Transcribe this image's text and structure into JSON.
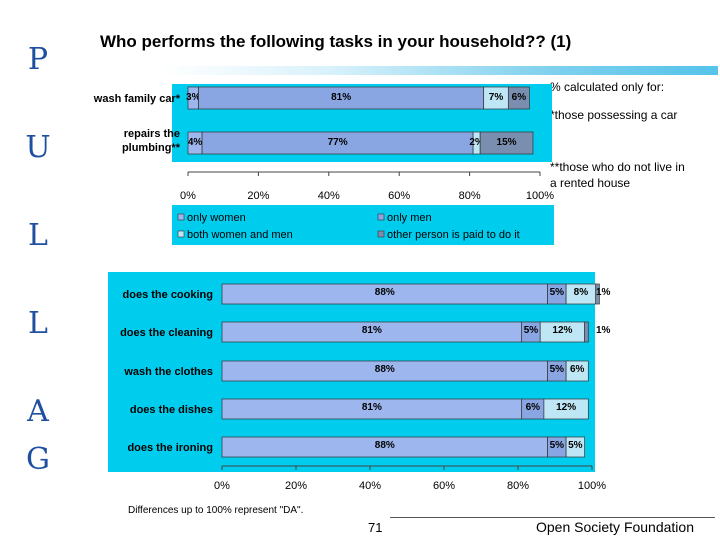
{
  "title": "Who performs the following tasks in your household?? (1)",
  "side_logo": "G A L L U P",
  "notes": {
    "line1": "% calculated only for:",
    "line2": "*those possessing a car",
    "line3a": "**those who do not live in",
    "line3b": "a rented house"
  },
  "footnote": "Differences up to 100% represent \"DA\".",
  "page_number": "71",
  "organization": "Open Society Foundation",
  "colors": {
    "only_women": "#9db6ee",
    "only_men": "#8aa6e2",
    "both": "#bfe6f4",
    "other": "#7a8fb0",
    "panel_bg": "#00ccee"
  },
  "legend": {
    "items": [
      {
        "label": "only women",
        "color": "#9db6ee"
      },
      {
        "label": "only men",
        "color": "#8aa6e2"
      },
      {
        "label": "both women and men",
        "color": "#bfe6f4"
      },
      {
        "label": "other person is paid to do it",
        "color": "#7a8fb0"
      }
    ]
  },
  "chart_data": [
    {
      "type": "bar",
      "orientation": "horizontal",
      "stacked": true,
      "categories": [
        "wash family car*",
        "repairs the plumbing**"
      ],
      "series": [
        {
          "name": "only women",
          "values": [
            3,
            4
          ]
        },
        {
          "name": "only men",
          "values": [
            81,
            77
          ]
        },
        {
          "name": "both women and men",
          "values": [
            7,
            2
          ]
        },
        {
          "name": "other person is paid to do it",
          "values": [
            6,
            15
          ]
        }
      ],
      "data_labels": [
        [
          "3%",
          "81%",
          "7%",
          "6%"
        ],
        [
          "4%",
          "77%",
          "2%",
          "15%"
        ]
      ],
      "xlim": [
        0,
        100
      ],
      "xticks": [
        "0%",
        "20%",
        "40%",
        "60%",
        "80%",
        "100%"
      ],
      "legend_position": "bottom"
    },
    {
      "type": "bar",
      "orientation": "horizontal",
      "stacked": true,
      "categories": [
        "does the cooking",
        "does the cleaning",
        "wash the clothes",
        "does the dishes",
        "does the ironing"
      ],
      "series": [
        {
          "name": "only women",
          "values": [
            88,
            81,
            88,
            81,
            88
          ]
        },
        {
          "name": "only men",
          "values": [
            5,
            5,
            5,
            6,
            5
          ]
        },
        {
          "name": "both women and men",
          "values": [
            8,
            12,
            6,
            12,
            5
          ]
        },
        {
          "name": "other person is paid to do it",
          "values": [
            1,
            1,
            0,
            0,
            0
          ]
        }
      ],
      "data_labels": [
        [
          "88%",
          "5%",
          "8%",
          "1%"
        ],
        [
          "81%",
          "5%",
          "12%",
          "1%"
        ],
        [
          "88%",
          "5%",
          "6%",
          ""
        ],
        [
          "81%",
          "6%",
          "12%",
          ""
        ],
        [
          "88%",
          "5%",
          "5%",
          ""
        ]
      ],
      "xlim": [
        0,
        100
      ],
      "xticks": [
        "0%",
        "20%",
        "40%",
        "60%",
        "80%",
        "100%"
      ]
    }
  ]
}
